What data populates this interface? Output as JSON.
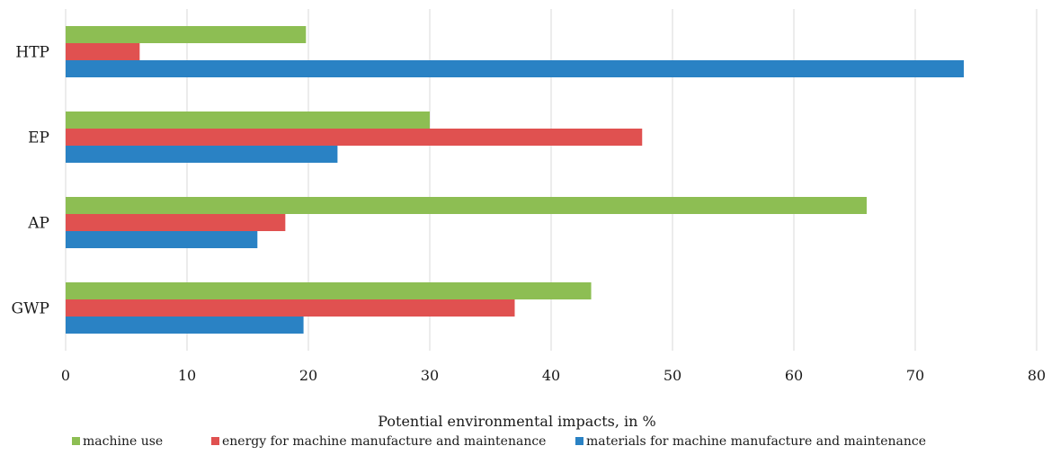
{
  "chart_data": {
    "type": "bar",
    "orientation": "horizontal",
    "categories": [
      "HTP",
      "EP",
      "AP",
      "GWP"
    ],
    "series": [
      {
        "name": "machine use",
        "color": "#8dbe53",
        "values": [
          19.8,
          30.0,
          66.0,
          43.3
        ]
      },
      {
        "name": "energy for machine manufacture and maintenance",
        "color": "#e05150",
        "values": [
          6.1,
          47.5,
          18.1,
          37.0
        ]
      },
      {
        "name": "materials for machine manufacture and maintenance",
        "color": "#2a82c4",
        "values": [
          74.0,
          22.4,
          15.8,
          19.6
        ]
      }
    ],
    "xlabel": "Potential environmental impacts, in %",
    "ylabel": "",
    "xlim": [
      0,
      80
    ],
    "xticks": [
      "0",
      "10",
      "20",
      "30",
      "40",
      "50",
      "60",
      "70",
      "80"
    ],
    "grid": "vertical",
    "legend_position": "bottom"
  }
}
